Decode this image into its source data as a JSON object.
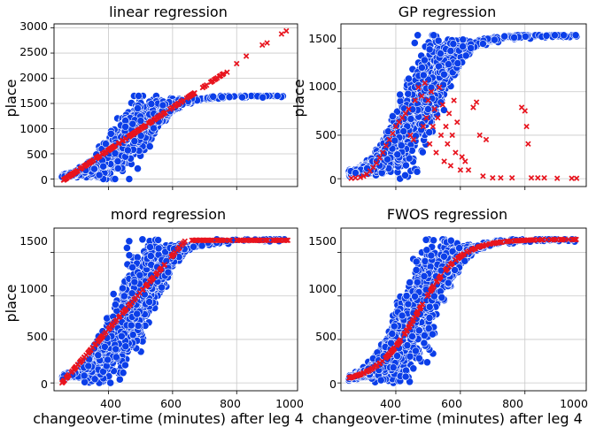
{
  "colors": {
    "observed": "#0b3ee8",
    "observed_edge": "#ffffff",
    "predicted": "#e8141e",
    "grid": "#c8c8c8",
    "frame": "#000000"
  },
  "chart_data": [
    {
      "type": "scatter",
      "title": "linear regression",
      "xlabel": "",
      "ylabel": "place",
      "xlim": [
        230,
        990
      ],
      "ylim": [
        -150,
        3080
      ],
      "xticks": [
        400,
        600,
        800,
        1000
      ],
      "xtick_labels": [
        "",
        "",
        "",
        ""
      ],
      "yticks": [
        0,
        500,
        1000,
        1500,
        2000,
        2500,
        3000
      ],
      "ytick_labels": [
        "0",
        "500",
        "1000",
        "1500",
        "2000",
        "2500",
        "3000"
      ],
      "grid": true,
      "model": "linear",
      "series": [
        {
          "name": "observed",
          "marker": "circle",
          "curve": "logistic",
          "n": 1700,
          "x_range": [
            255,
            960
          ],
          "y_min": 0,
          "y_max": 1650,
          "x_mid": 470,
          "steepness": 65
        },
        {
          "name": "predicted",
          "marker": "x",
          "slope": 4.23,
          "intercept": -1120,
          "x_range": [
            260,
            960
          ],
          "outliers": [
            [
              770,
              2120
            ],
            [
              800,
              2290
            ],
            [
              830,
              2440
            ],
            [
              880,
              2660
            ],
            [
              895,
              2700
            ],
            [
              940,
              2880
            ],
            [
              955,
              2940
            ]
          ]
        }
      ]
    },
    {
      "type": "scatter",
      "title": "GP regression",
      "xlabel": "",
      "ylabel": "place",
      "xlim": [
        230,
        990
      ],
      "ylim": [
        -90,
        1780
      ],
      "xticks": [
        400,
        600,
        800,
        1000
      ],
      "xtick_labels": [
        "",
        "",
        "",
        ""
      ],
      "yticks": [
        0,
        500,
        1000,
        1500
      ],
      "ytick_labels": [
        "0",
        "500",
        "1000",
        "1500"
      ],
      "grid": true,
      "model": "gp",
      "series": [
        {
          "name": "observed",
          "marker": "circle",
          "curve": "logistic",
          "n": 1700,
          "x_range": [
            255,
            960
          ],
          "y_min": 0,
          "y_max": 1650,
          "x_mid": 470,
          "steepness": 65
        },
        {
          "name": "predicted",
          "marker": "x",
          "points": [
            [
              262,
              5
            ],
            [
              275,
              10
            ],
            [
              290,
              15
            ],
            [
              300,
              30
            ],
            [
              310,
              50
            ],
            [
              320,
              90
            ],
            [
              330,
              130
            ],
            [
              340,
              180
            ],
            [
              350,
              240
            ],
            [
              360,
              300
            ],
            [
              370,
              380
            ],
            [
              380,
              450
            ],
            [
              390,
              520
            ],
            [
              400,
              600
            ],
            [
              410,
              650
            ],
            [
              420,
              700
            ],
            [
              430,
              750
            ],
            [
              440,
              800
            ],
            [
              445,
              500
            ],
            [
              455,
              450
            ],
            [
              460,
              900
            ],
            [
              470,
              1050
            ],
            [
              480,
              950
            ],
            [
              485,
              600
            ],
            [
              490,
              1100
            ],
            [
              495,
              700
            ],
            [
              500,
              900
            ],
            [
              505,
              400
            ],
            [
              510,
              1000
            ],
            [
              515,
              600
            ],
            [
              520,
              800
            ],
            [
              525,
              300
            ],
            [
              530,
              700
            ],
            [
              535,
              1050
            ],
            [
              540,
              500
            ],
            [
              545,
              850
            ],
            [
              550,
              200
            ],
            [
              555,
              600
            ],
            [
              560,
              400
            ],
            [
              565,
              750
            ],
            [
              570,
              150
            ],
            [
              575,
              500
            ],
            [
              580,
              900
            ],
            [
              585,
              300
            ],
            [
              590,
              650
            ],
            [
              600,
              100
            ],
            [
              605,
              250
            ],
            [
              615,
              200
            ],
            [
              625,
              100
            ],
            [
              640,
              820
            ],
            [
              650,
              880
            ],
            [
              660,
              500
            ],
            [
              670,
              30
            ],
            [
              680,
              450
            ],
            [
              700,
              10
            ],
            [
              725,
              10
            ],
            [
              760,
              10
            ],
            [
              790,
              820
            ],
            [
              800,
              780
            ],
            [
              805,
              600
            ],
            [
              810,
              400
            ],
            [
              820,
              10
            ],
            [
              840,
              10
            ],
            [
              860,
              10
            ],
            [
              900,
              5
            ],
            [
              945,
              5
            ],
            [
              960,
              5
            ]
          ]
        }
      ]
    },
    {
      "type": "scatter",
      "title": "mord regression",
      "xlabel": "changeover-time (minutes) after leg 4",
      "ylabel": "place",
      "xlim": [
        230,
        990
      ],
      "ylim": [
        -90,
        1780
      ],
      "xticks": [
        400,
        600,
        800,
        1000
      ],
      "xtick_labels": [
        "400",
        "600",
        "800",
        "1000"
      ],
      "yticks": [
        0,
        500,
        1000,
        1500
      ],
      "ytick_labels": [
        "0",
        "500",
        "1000",
        "1500"
      ],
      "grid": true,
      "model": "mord",
      "series": [
        {
          "name": "observed",
          "marker": "circle",
          "curve": "logistic",
          "n": 1700,
          "x_range": [
            255,
            960
          ],
          "y_min": 0,
          "y_max": 1650,
          "x_mid": 470,
          "steepness": 65
        },
        {
          "name": "predicted",
          "marker": "x",
          "x_range": [
            255,
            960
          ],
          "linear_until": 640,
          "slope": 4.25,
          "x_start": 255,
          "cap": 1640
        }
      ]
    },
    {
      "type": "scatter",
      "title": "FWOS regression",
      "xlabel": "changeover-time (minutes) after leg 4",
      "ylabel": "",
      "xlim": [
        230,
        990
      ],
      "ylim": [
        -90,
        1780
      ],
      "xticks": [
        400,
        600,
        800,
        1000
      ],
      "xtick_labels": [
        "400",
        "600",
        "800",
        "1000"
      ],
      "yticks": [
        0,
        500,
        1000,
        1500
      ],
      "ytick_labels": [
        "0",
        "500",
        "1000",
        "1500"
      ],
      "grid": true,
      "model": "fwos",
      "series": [
        {
          "name": "observed",
          "marker": "circle",
          "curve": "logistic",
          "n": 1700,
          "x_range": [
            255,
            960
          ],
          "y_min": 0,
          "y_max": 1650,
          "x_mid": 470,
          "steepness": 65
        },
        {
          "name": "predicted",
          "marker": "x",
          "curve": "logistic",
          "x_range": [
            255,
            960
          ],
          "y_min": 0,
          "y_max": 1650,
          "x_mid": 470,
          "steepness": 65
        }
      ]
    }
  ]
}
